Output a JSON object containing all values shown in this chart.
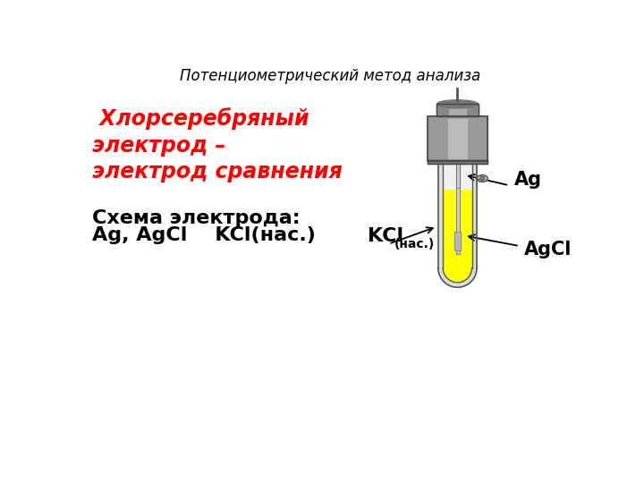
{
  "title": "Потенциометрический метод анализа",
  "title_fontsize": 12,
  "title_color": "#000000",
  "heading_line1": " Хлорсеребряный",
  "heading_line2": "электрод –",
  "heading_line3": "электрод сравнения",
  "heading_color": "#ff0000",
  "heading_fontsize": 17,
  "schema_label": "Схема электрода:",
  "schema_formula": "Ag, AgCl    KCl(нас.)",
  "schema_fontsize": 16,
  "schema_color": "#000000",
  "bg_color": "#ffffff",
  "cap_color": "#888888",
  "cap_dark": "#666666",
  "cap_light": "#aaaaaa",
  "glass_color": "#dddddd",
  "glass_edge": "#555555",
  "fill_color": "#ffff00",
  "wire_color": "#cccccc",
  "agcl_color": "#b8b8b8",
  "arrow_color": "#000000",
  "label_color": "#000000"
}
